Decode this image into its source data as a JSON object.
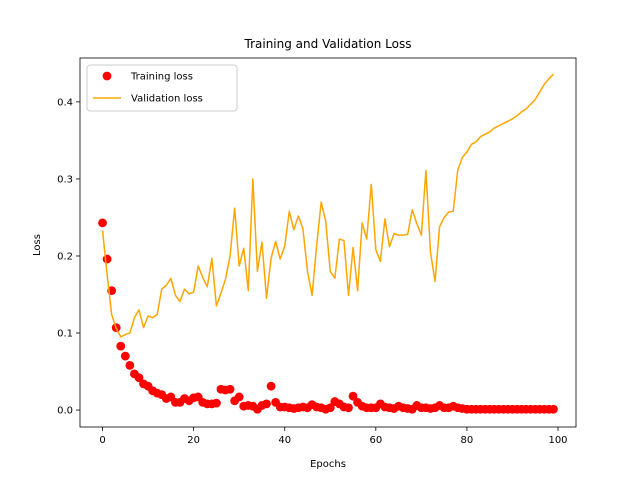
{
  "chart_data": {
    "type": "line",
    "title": "Training and Validation Loss",
    "xlabel": "Epochs",
    "ylabel": "Loss",
    "xlim": [
      -4.95,
      103.95
    ],
    "ylim": [
      -0.022,
      0.457
    ],
    "xticks": [
      0,
      20,
      40,
      60,
      80,
      100
    ],
    "yticks": [
      0.0,
      0.1,
      0.2,
      0.3,
      0.4
    ],
    "ytick_labels": [
      "0.0",
      "0.1",
      "0.2",
      "0.3",
      "0.4"
    ],
    "legend_position": "upper-left",
    "series": [
      {
        "name": "Training loss",
        "style": "scatter",
        "color": "#ff0000",
        "x": [
          0,
          1,
          2,
          3,
          4,
          5,
          6,
          7,
          8,
          9,
          10,
          11,
          12,
          13,
          14,
          15,
          16,
          17,
          18,
          19,
          20,
          21,
          22,
          23,
          24,
          25,
          26,
          27,
          28,
          29,
          30,
          31,
          32,
          33,
          34,
          35,
          36,
          37,
          38,
          39,
          40,
          41,
          42,
          43,
          44,
          45,
          46,
          47,
          48,
          49,
          50,
          51,
          52,
          53,
          54,
          55,
          56,
          57,
          58,
          59,
          60,
          61,
          62,
          63,
          64,
          65,
          66,
          67,
          68,
          69,
          70,
          71,
          72,
          73,
          74,
          75,
          76,
          77,
          78,
          79,
          80,
          81,
          82,
          83,
          84,
          85,
          86,
          87,
          88,
          89,
          90,
          91,
          92,
          93,
          94,
          95,
          96,
          97,
          98,
          99
        ],
        "values": [
          0.243,
          0.196,
          0.155,
          0.107,
          0.083,
          0.07,
          0.058,
          0.047,
          0.042,
          0.034,
          0.031,
          0.025,
          0.022,
          0.02,
          0.015,
          0.017,
          0.01,
          0.01,
          0.015,
          0.012,
          0.016,
          0.017,
          0.01,
          0.008,
          0.008,
          0.009,
          0.027,
          0.026,
          0.027,
          0.012,
          0.017,
          0.005,
          0.006,
          0.005,
          0.001,
          0.006,
          0.008,
          0.031,
          0.01,
          0.004,
          0.004,
          0.003,
          0.002,
          0.003,
          0.004,
          0.003,
          0.007,
          0.004,
          0.003,
          0.001,
          0.003,
          0.011,
          0.008,
          0.004,
          0.003,
          0.018,
          0.01,
          0.005,
          0.003,
          0.003,
          0.003,
          0.008,
          0.004,
          0.003,
          0.002,
          0.005,
          0.003,
          0.002,
          0.001,
          0.006,
          0.003,
          0.003,
          0.002,
          0.003,
          0.006,
          0.003,
          0.003,
          0.005,
          0.003,
          0.002,
          0.001,
          0.001,
          0.001,
          0.001,
          0.001,
          0.001,
          0.001,
          0.001,
          0.001,
          0.001,
          0.001,
          0.001,
          0.001,
          0.001,
          0.001,
          0.001,
          0.001,
          0.001,
          0.001,
          0.001
        ]
      },
      {
        "name": "Validation loss",
        "style": "line",
        "color": "#ffa500",
        "x": [
          0,
          1,
          2,
          3,
          4,
          5,
          6,
          7,
          8,
          9,
          10,
          11,
          12,
          13,
          14,
          15,
          16,
          17,
          18,
          19,
          20,
          21,
          22,
          23,
          24,
          25,
          26,
          27,
          28,
          29,
          30,
          31,
          32,
          33,
          34,
          35,
          36,
          37,
          38,
          39,
          40,
          41,
          42,
          43,
          44,
          45,
          46,
          47,
          48,
          49,
          50,
          51,
          52,
          53,
          54,
          55,
          56,
          57,
          58,
          59,
          60,
          61,
          62,
          63,
          64,
          65,
          66,
          67,
          68,
          69,
          70,
          71,
          72,
          73,
          74,
          75,
          76,
          77,
          78,
          79,
          80,
          81,
          82,
          83,
          84,
          85,
          86,
          87,
          88,
          89,
          90,
          91,
          92,
          93,
          94,
          95,
          96,
          97,
          98,
          99
        ],
        "values": [
          0.233,
          0.176,
          0.124,
          0.106,
          0.095,
          0.098,
          0.1,
          0.12,
          0.13,
          0.107,
          0.122,
          0.12,
          0.124,
          0.157,
          0.162,
          0.171,
          0.149,
          0.141,
          0.157,
          0.151,
          0.153,
          0.187,
          0.172,
          0.16,
          0.197,
          0.135,
          0.152,
          0.17,
          0.2,
          0.262,
          0.187,
          0.21,
          0.155,
          0.3,
          0.18,
          0.218,
          0.145,
          0.197,
          0.219,
          0.196,
          0.213,
          0.258,
          0.234,
          0.252,
          0.235,
          0.18,
          0.149,
          0.213,
          0.27,
          0.245,
          0.18,
          0.171,
          0.222,
          0.22,
          0.149,
          0.211,
          0.155,
          0.243,
          0.222,
          0.293,
          0.208,
          0.193,
          0.248,
          0.212,
          0.229,
          0.227,
          0.227,
          0.228,
          0.26,
          0.242,
          0.227,
          0.311,
          0.205,
          0.167,
          0.238,
          0.25,
          0.257,
          0.258,
          0.312,
          0.328,
          0.335,
          0.345,
          0.348,
          0.355,
          0.358,
          0.361,
          0.366,
          0.369,
          0.372,
          0.375,
          0.378,
          0.382,
          0.387,
          0.391,
          0.397,
          0.403,
          0.413,
          0.423,
          0.43,
          0.436
        ]
      }
    ]
  }
}
